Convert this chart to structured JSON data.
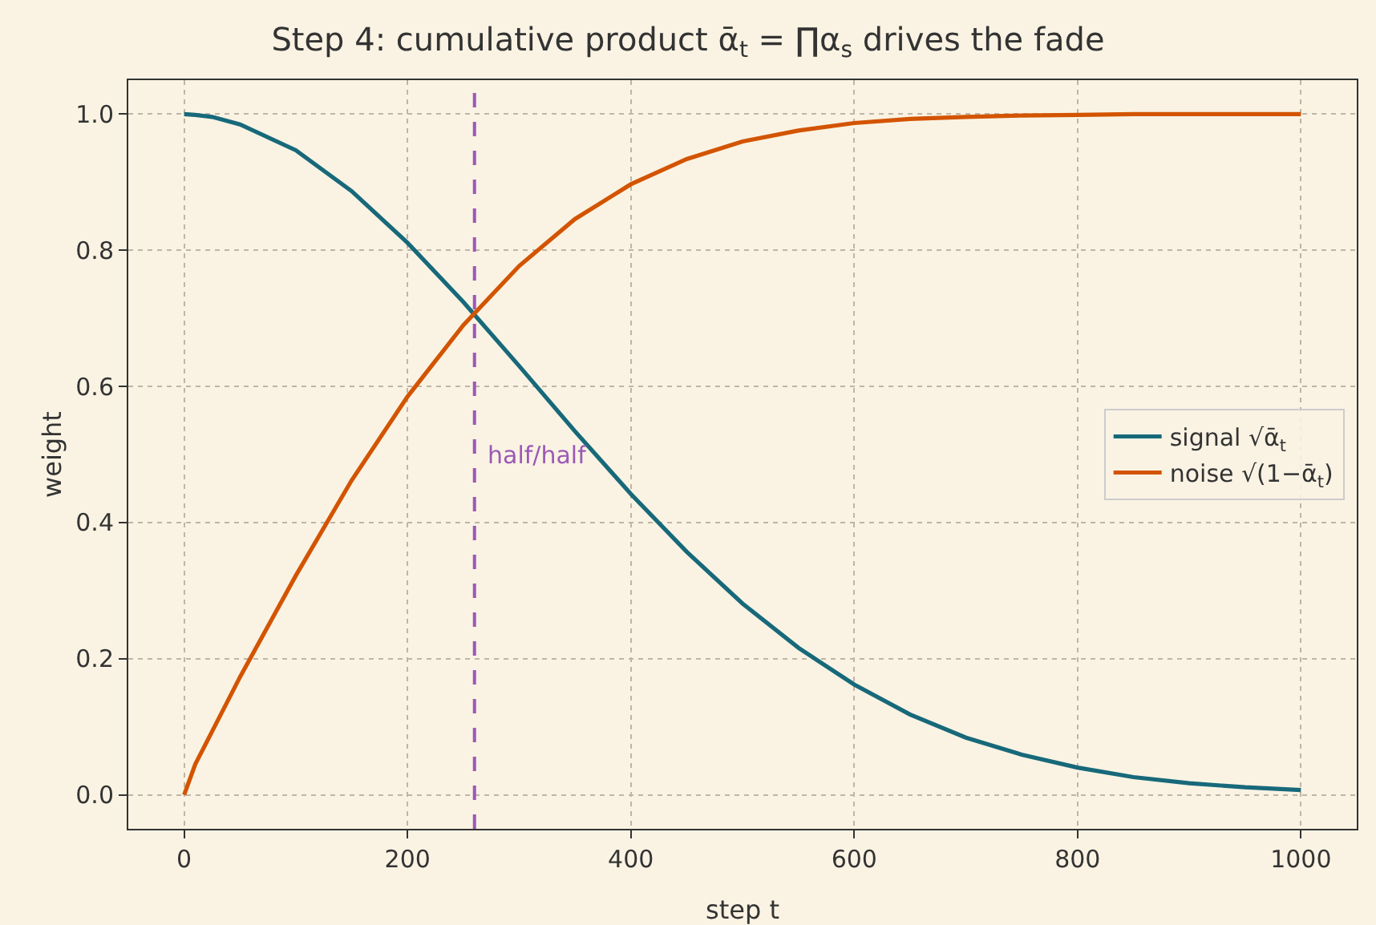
{
  "chart_data": {
    "type": "line",
    "title": "Step 4: cumulative product ᾱ$_{t}$ = ∏α$_{s}$ drives the fade",
    "xlabel": "step t",
    "ylabel": "weight",
    "x": [
      0,
      10,
      25,
      50,
      100,
      150,
      200,
      250,
      300,
      350,
      400,
      450,
      500,
      550,
      600,
      650,
      700,
      750,
      800,
      850,
      900,
      950,
      1000
    ],
    "series": [
      {
        "name": "signal √ᾱ$_{t}$",
        "color": "#17697a",
        "values": [
          1.0,
          0.999,
          0.996,
          0.985,
          0.947,
          0.887,
          0.811,
          0.724,
          0.63,
          0.534,
          0.442,
          0.357,
          0.281,
          0.216,
          0.162,
          0.118,
          0.084,
          0.059,
          0.04,
          0.026,
          0.017,
          0.011,
          0.007
        ]
      },
      {
        "name": "noise √(1−ᾱ$_{t}$)",
        "color": "#d35400",
        "values": [
          0.0,
          0.045,
          0.093,
          0.173,
          0.322,
          0.462,
          0.585,
          0.69,
          0.777,
          0.846,
          0.897,
          0.934,
          0.96,
          0.976,
          0.987,
          0.993,
          0.996,
          0.998,
          0.999,
          1.0,
          1.0,
          1.0,
          1.0
        ]
      }
    ],
    "ref_lines": [
      {
        "axis": "x",
        "value": 260,
        "label": "half/half",
        "color": "#9b59b6",
        "line_style": "dashed"
      }
    ],
    "xlim": [
      -50,
      1050
    ],
    "ylim": [
      -0.05,
      1.05
    ],
    "xticks": [
      0,
      200,
      400,
      600,
      800,
      1000
    ],
    "yticks": [
      {
        "value": 0,
        "label": "0.0"
      },
      0.2,
      0.4,
      0.6,
      0.8,
      {
        "value": 1,
        "label": "1.0"
      }
    ],
    "grid": true,
    "legend": "right",
    "marker": "none",
    "line_style": "solid"
  }
}
